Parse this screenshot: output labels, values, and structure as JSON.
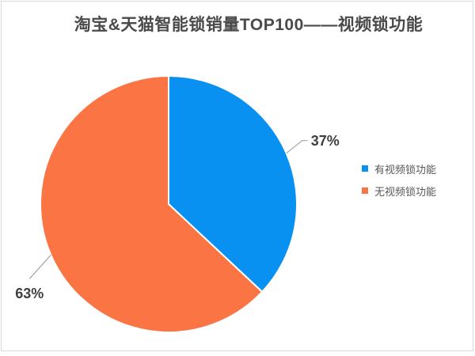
{
  "page": {
    "background_color": "#ffffff",
    "frame_border_color": "#d9d9d9"
  },
  "chart_data": {
    "type": "pie",
    "title": "淘宝&天猫智能锁销量TOP100——视频锁功能",
    "title_color": "#4a4a4a",
    "start_angle_deg": 0,
    "direction": "clockwise",
    "legend_position": "right",
    "leader_line_color": "#a6a6a6",
    "label_color": "#3f3f3f",
    "legend_text_color": "#595959",
    "slices": [
      {
        "name": "有视频锁功能",
        "value": 37,
        "label": "37%",
        "color": "#0991f2"
      },
      {
        "name": "无视频锁功能",
        "value": 63,
        "label": "63%",
        "color": "#fb7544"
      }
    ]
  }
}
